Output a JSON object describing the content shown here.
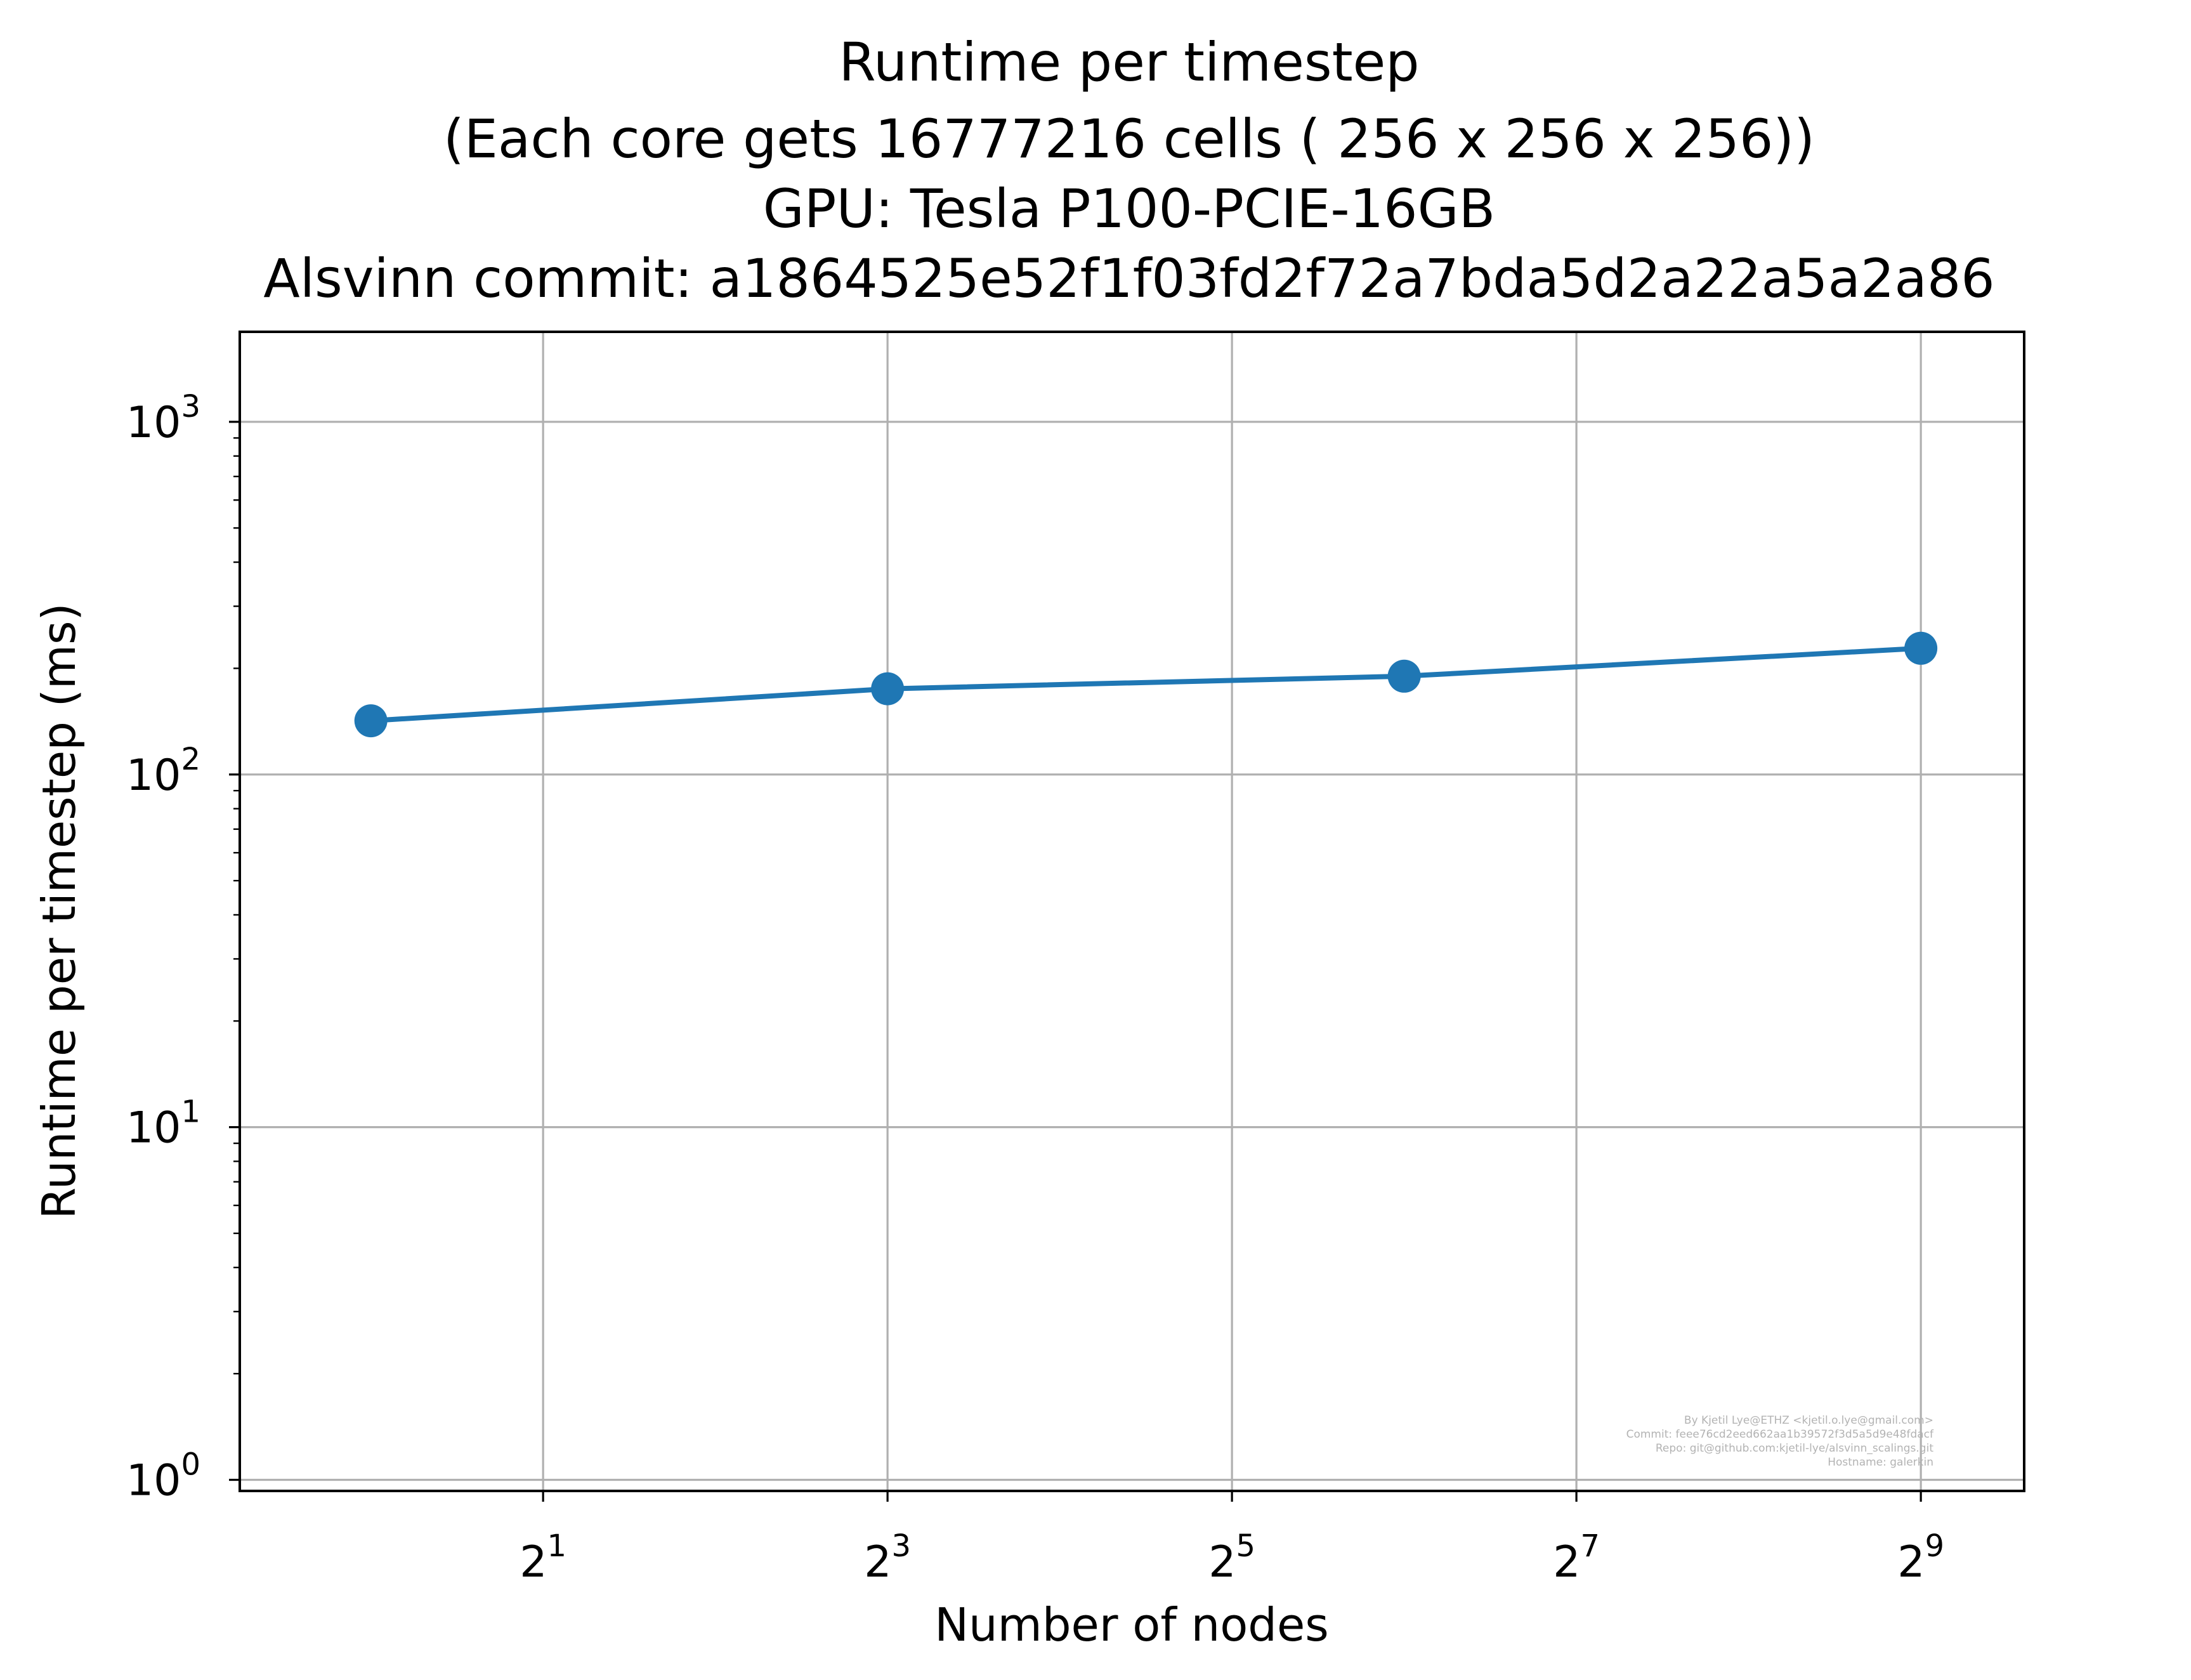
{
  "chart_data": {
    "type": "line",
    "title_lines": [
      "Runtime per timestep",
      "(Each core gets 16777216 cells ( 256 x 256 x 256))",
      "GPU: Tesla P100-PCIE-16GB",
      "Alsvinn commit: a1864525e52f1f03fd2f72a7bda5d2a22a5a2a86"
    ],
    "xlabel": "Number of nodes",
    "ylabel": "Runtime per timestep (ms)",
    "x_scale": "log2",
    "y_scale": "log10",
    "xlim": [
      0.59,
      776
    ],
    "ylim": [
      0.93,
      1800
    ],
    "x_ticks": [
      {
        "value": 2,
        "base": "2",
        "exp": "1"
      },
      {
        "value": 8,
        "base": "2",
        "exp": "3"
      },
      {
        "value": 32,
        "base": "2",
        "exp": "5"
      },
      {
        "value": 128,
        "base": "2",
        "exp": "7"
      },
      {
        "value": 512,
        "base": "2",
        "exp": "9"
      }
    ],
    "y_ticks": [
      {
        "value": 1,
        "base": "10",
        "exp": "0"
      },
      {
        "value": 10,
        "base": "10",
        "exp": "1"
      },
      {
        "value": 100,
        "base": "10",
        "exp": "2"
      },
      {
        "value": 1000,
        "base": "10",
        "exp": "3"
      }
    ],
    "grid": true,
    "series": [
      {
        "color": "#1f77b4",
        "marker": "circle",
        "x": [
          1,
          8,
          64,
          512
        ],
        "y": [
          142,
          175,
          190,
          228
        ]
      }
    ],
    "watermark": [
      "By Kjetil Lye@ETHZ <kjetil.o.lye@gmail.com>",
      "Commit: feee76cd2eed662aa1b39572f3d5a5d9e48fdacf",
      "Repo: git@github.com:kjetil-lye/alsvinn_scalings.git",
      "Hostname: galerkin"
    ]
  }
}
